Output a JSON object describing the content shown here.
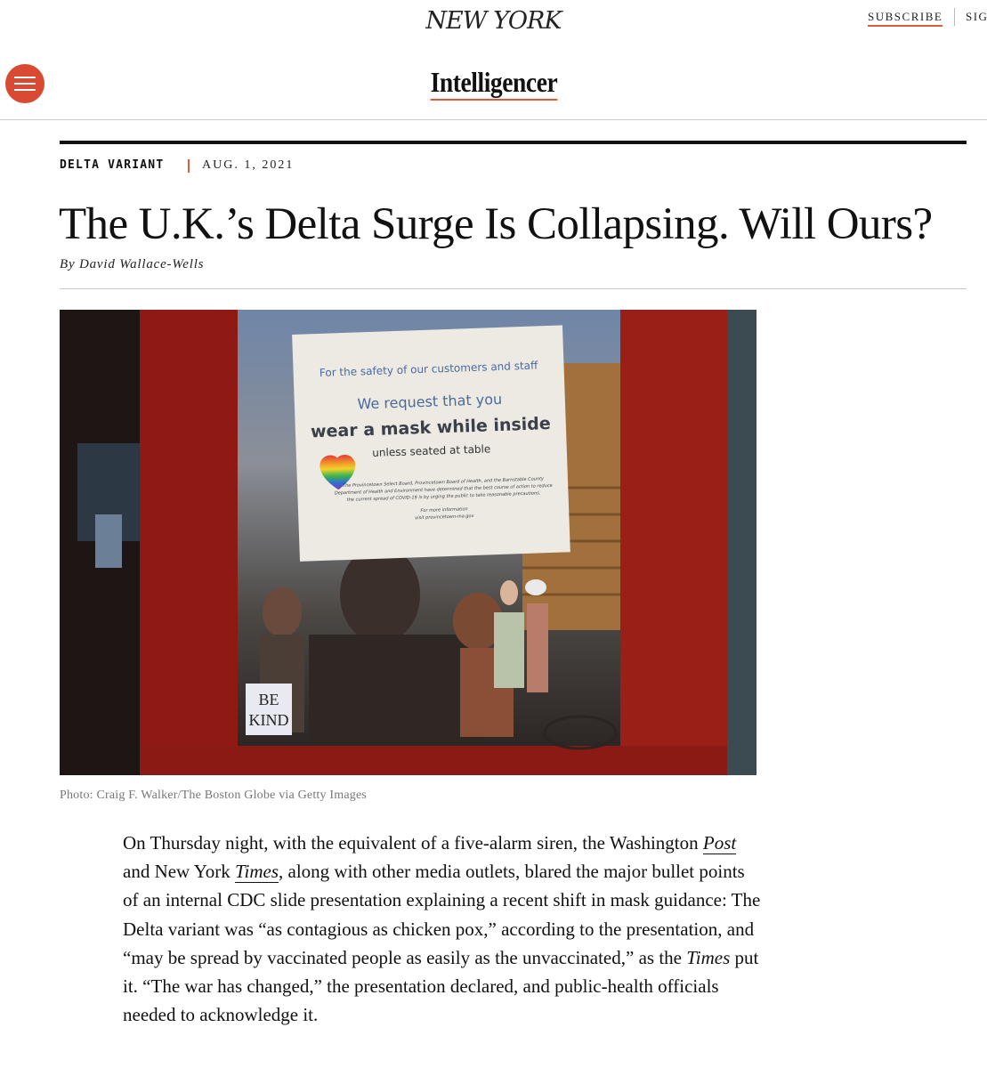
{
  "header": {
    "logo": "NEW YORK",
    "subscribe_label": "SUBSCRIBE",
    "signin_label": "SIG",
    "section_name": "Intelligencer",
    "menu_icon": "hamburger-menu-icon",
    "accent_color": "#d94a32"
  },
  "article": {
    "rubric": "DELTA VARIANT",
    "date": "AUG. 1, 2021",
    "headline": "The U.K.’s Delta Surge Is Collapsing. Will Ours?",
    "byline_prefix": "By",
    "author": "David Wallace-Wells",
    "photo": {
      "sign_line1": "For the safety of our customers and staff",
      "sign_line2": "We request that you",
      "sign_line3": "wear a mask while inside",
      "sign_line4": "unless seated at table",
      "sign_fine1": "The Provincetown Select Board, Provincetown Board of Health, and the Barnstable County",
      "sign_fine2": "Department of Health and Environment have determined that the best course of action to reduce",
      "sign_fine3": "the current spread of COVID-19 is by urging the public to take reasonable precautions.",
      "sign_more1": "For more information",
      "sign_more2": "visit provincetown-ma.gov",
      "small_sign_line1": "BE",
      "small_sign_line2": "KIND"
    },
    "photo_credit": "Photo: Craig F. Walker/The Boston Globe via Getty Images",
    "paragraph": {
      "p1": "On Thursday night, with the equivalent of a five-alarm siren, the Washington ",
      "post": "Post",
      "p2": " and New York ",
      "times": "Times",
      "p3": ", along with other media outlets, blared the major bullet points of an internal CDC slide presentation explaining a recent shift in mask guidance: The Delta variant was “as contagious as chicken pox,” according to the presentation, and “may be spread by vaccinated people as easily as the unvaccinated,” as the ",
      "times2": "Times",
      "p4": " put it. “The war has changed,” the presentation declared, and public-health officials needed to acknowledge it."
    }
  }
}
